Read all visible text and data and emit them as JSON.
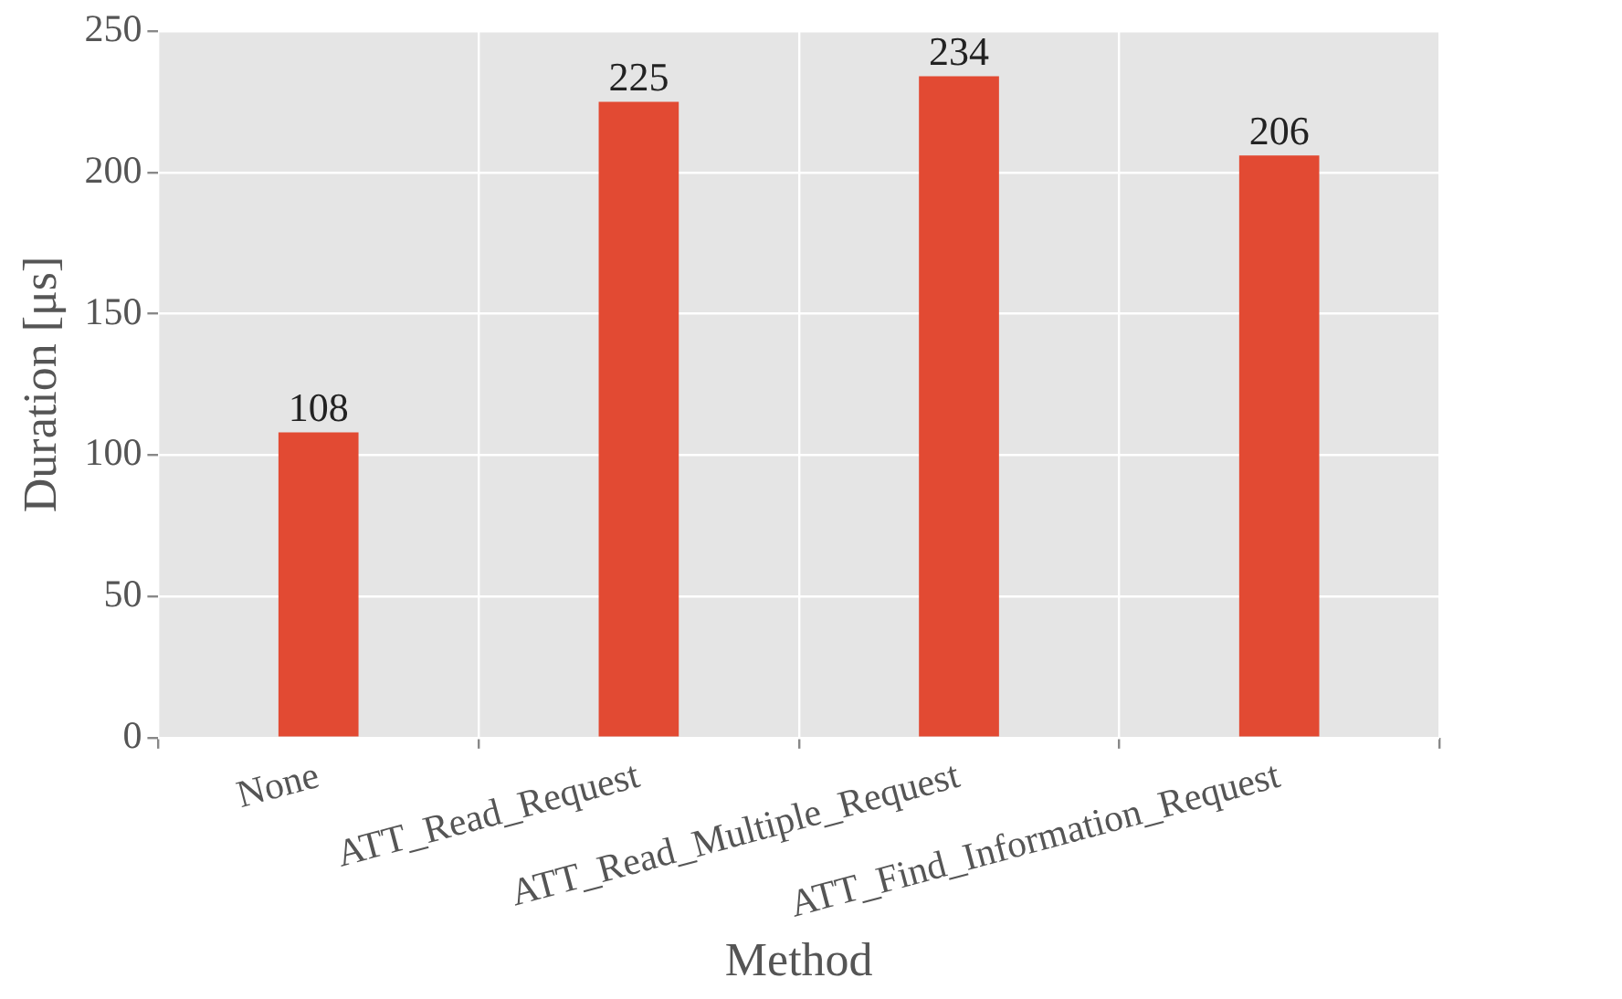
{
  "chart_data": {
    "type": "bar",
    "xlabel": "Method",
    "ylabel": "Duration [μs]",
    "categories": [
      "None",
      "ATT_Read_Request",
      "ATT_Read_Multiple_Request",
      "ATT_Find_Information_Request"
    ],
    "values": [
      108,
      225,
      234,
      206
    ],
    "color": "#e24a33",
    "ylim": [
      0,
      250
    ],
    "yticks": [
      0,
      50,
      100,
      150,
      200,
      250
    ],
    "grid": true,
    "data_labels": true
  }
}
